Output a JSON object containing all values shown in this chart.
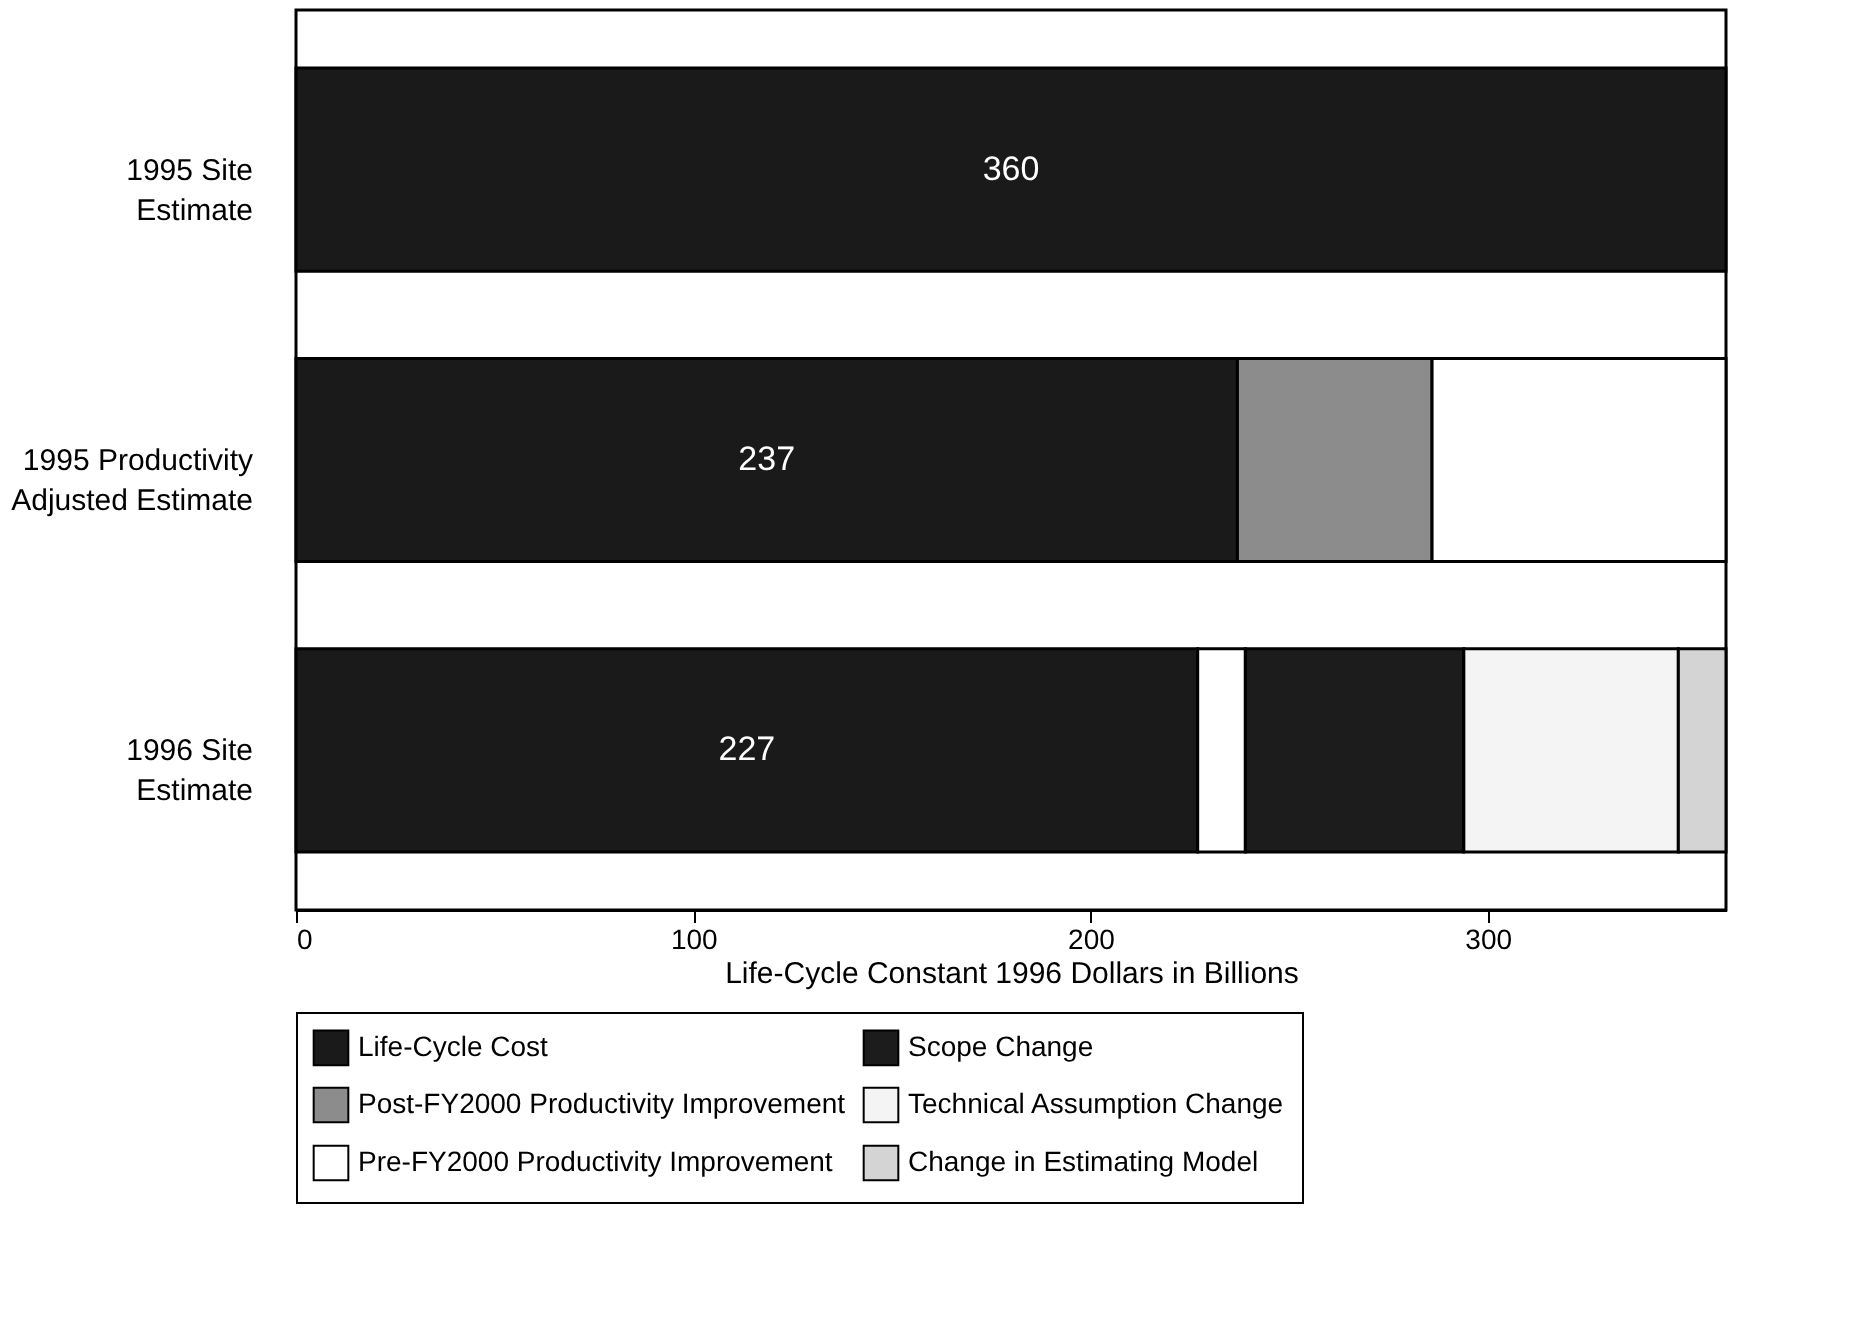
{
  "chart_data": {
    "type": "bar",
    "orientation": "horizontal",
    "stacked": true,
    "xlabel": "Life-Cycle Constant 1996 Dollars in Billions",
    "categories": [
      "1995 Site Estimate",
      "1995 Productivity Adjusted Estimate",
      "1996 Site Estimate"
    ],
    "series": [
      {
        "name": "Life-Cycle Cost",
        "color": "#1a1a1a",
        "values": [
          360,
          237,
          227
        ],
        "value_labels": [
          "360",
          "237",
          "227"
        ]
      },
      {
        "name": "Post-FY2000 Productivity Improvement",
        "color": "#8c8c8c",
        "values": [
          null,
          49,
          null
        ]
      },
      {
        "name": "Pre-FY2000 Productivity Improvement",
        "color": "#ffffff",
        "values": [
          null,
          74,
          12
        ]
      },
      {
        "name": "Scope Change",
        "color": "#1c1c1c",
        "values": [
          null,
          null,
          55
        ]
      },
      {
        "name": "Technical Assumption Change",
        "color": "#f4f4f4",
        "values": [
          null,
          null,
          54
        ]
      },
      {
        "name": "Change in Estimating Model",
        "color": "#d4d4d4",
        "values": [
          null,
          null,
          12
        ]
      }
    ],
    "xlim": [
      0,
      360
    ],
    "xticks": [
      0,
      100,
      200,
      300
    ],
    "grid": false,
    "legend": "bottom"
  }
}
